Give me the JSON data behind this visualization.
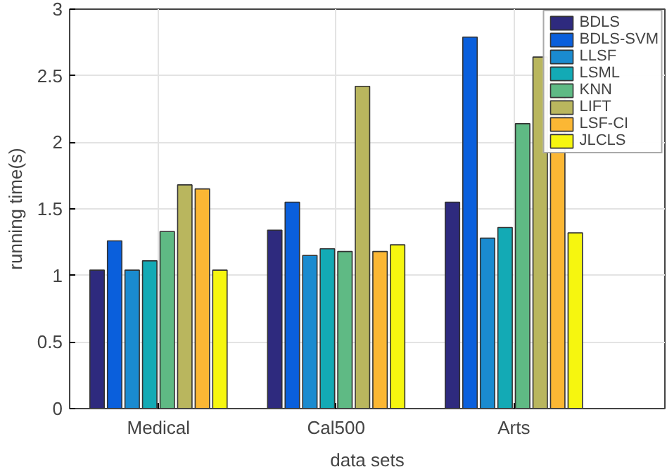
{
  "chart_data": {
    "type": "bar",
    "xlabel": "data sets",
    "ylabel": "running time(s)",
    "categories": [
      "Medical",
      "Cal500",
      "Arts"
    ],
    "series": [
      {
        "name": "BDLS",
        "color": "#2e2a7e",
        "values": [
          1.04,
          1.34,
          1.55
        ]
      },
      {
        "name": "BDLS-SVM",
        "color": "#0a5fdc",
        "values": [
          1.26,
          1.55,
          2.79
        ]
      },
      {
        "name": "LLSF",
        "color": "#1a8bd0",
        "values": [
          1.04,
          1.15,
          1.28
        ]
      },
      {
        "name": "LSML",
        "color": "#13aab5",
        "values": [
          1.11,
          1.2,
          1.36
        ]
      },
      {
        "name": "KNN",
        "color": "#5fba84",
        "values": [
          1.33,
          1.18,
          2.14
        ]
      },
      {
        "name": "LIFT",
        "color": "#b9b65e",
        "values": [
          1.68,
          2.42,
          2.64
        ]
      },
      {
        "name": "LSF-CI",
        "color": "#fbb734",
        "values": [
          1.65,
          1.18,
          2.48
        ]
      },
      {
        "name": "JLCLS",
        "color": "#f6f60f",
        "values": [
          1.04,
          1.23,
          1.32
        ]
      }
    ],
    "ylim": [
      0,
      3
    ],
    "yticks": [
      0,
      0.5,
      1,
      1.5,
      2,
      2.5,
      3
    ],
    "grid": true,
    "legend": "top right"
  }
}
